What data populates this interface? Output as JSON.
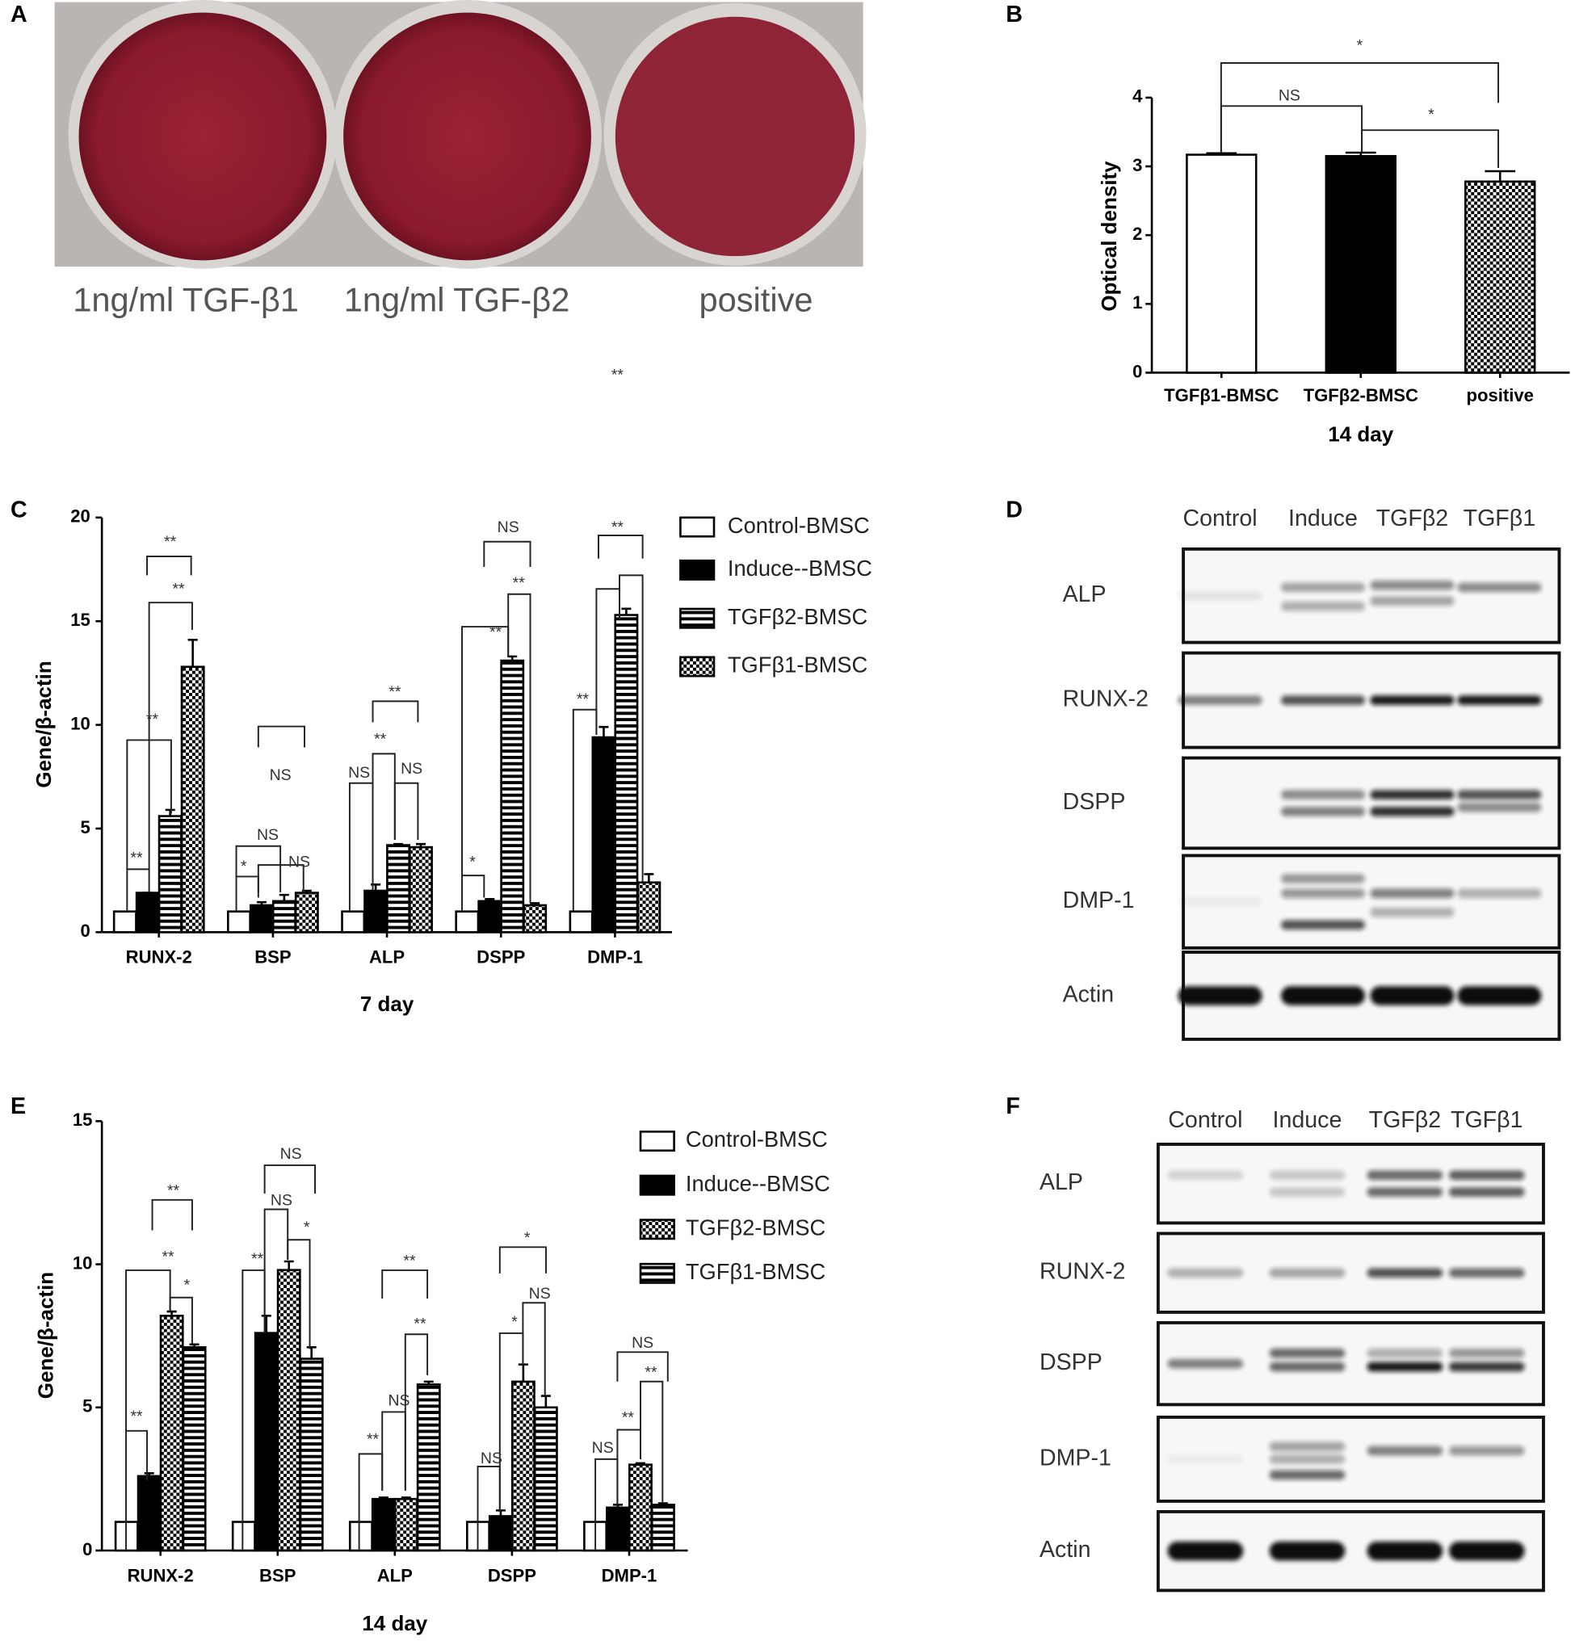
{
  "panel_a": {
    "panel_label": "A",
    "wells": [
      "1ng/ml TGF-β1",
      "1ng/ml TGF-β2",
      "positive"
    ],
    "annotation": "**"
  },
  "chart_data": [
    {
      "panel_label": "B",
      "type": "bar",
      "categories": [
        "TGFβ1-BMSC",
        "TGFβ2-BMSC",
        "positive"
      ],
      "values": [
        3.17,
        3.15,
        2.78
      ],
      "errors": [
        0.02,
        0.05,
        0.15
      ],
      "colors": [
        "#ffffff",
        "#000000",
        "#000000"
      ],
      "patterns": [
        "none",
        "none",
        "checker"
      ],
      "y_label": "Optical density",
      "x_label": "14 day",
      "ylim": [
        0,
        4
      ],
      "yticks": [
        0,
        1,
        2,
        3,
        4
      ],
      "annotations": [
        "*",
        "NS",
        "*"
      ]
    },
    {
      "panel_label": "C",
      "type": "bar",
      "categories": [
        "RUNX-2",
        "BSP",
        "ALP",
        "DSPP",
        "DMP-1"
      ],
      "series": [
        {
          "name": "Control-BMSC",
          "color": "#ffffff",
          "pattern": "none",
          "values": [
            1,
            1,
            1,
            1,
            1
          ]
        },
        {
          "name": "Induce--BMSC",
          "color": "#000000",
          "pattern": "none",
          "values": [
            1.9,
            1.3,
            2.0,
            1.5,
            9.4
          ],
          "errors": [
            0,
            0.15,
            0.3,
            0.1,
            0.5
          ]
        },
        {
          "name": "TGFβ2-BMSC",
          "color": "#000000",
          "pattern": "hstripe",
          "values": [
            5.6,
            1.5,
            4.2,
            13.1,
            15.3
          ],
          "errors": [
            0.3,
            0.3,
            0.05,
            0.2,
            0.3
          ]
        },
        {
          "name": "TGFβ1-BMSC",
          "color": "#000000",
          "pattern": "checker",
          "values": [
            12.8,
            1.9,
            4.1,
            1.3,
            2.4
          ],
          "errors": [
            1.3,
            0.1,
            0.15,
            0.1,
            0.4
          ]
        }
      ],
      "legend": "right",
      "y_label": "Gene/β-actin",
      "x_label": "7 day",
      "ylim": [
        0,
        20
      ],
      "yticks": [
        0,
        5,
        10,
        15,
        20
      ],
      "annotations": [
        "**",
        "**",
        "**",
        "**",
        "*",
        "NS",
        "NS",
        "NS",
        "NS",
        "**",
        "NS",
        "**",
        "*",
        "**",
        "NS",
        "**",
        "**",
        "**"
      ]
    },
    {
      "panel_label": "E",
      "type": "bar",
      "categories": [
        "RUNX-2",
        "BSP",
        "ALP",
        "DSPP",
        "DMP-1"
      ],
      "series": [
        {
          "name": "Control-BMSC",
          "color": "#ffffff",
          "pattern": "none",
          "values": [
            1,
            1,
            1,
            1,
            1
          ]
        },
        {
          "name": "Induce--BMSC",
          "color": "#000000",
          "pattern": "none",
          "values": [
            2.6,
            7.6,
            1.8,
            1.2,
            1.5
          ],
          "errors": [
            0.1,
            0.6,
            0.05,
            0.2,
            0.1
          ]
        },
        {
          "name": "TGFβ2-BMSC",
          "color": "#000000",
          "pattern": "checker",
          "values": [
            8.2,
            9.8,
            1.8,
            5.9,
            3.0
          ],
          "errors": [
            0.15,
            0.3,
            0.05,
            0.6,
            0.05
          ]
        },
        {
          "name": "TGFβ1-BMSC",
          "color": "#000000",
          "pattern": "hstripe",
          "values": [
            7.1,
            6.7,
            5.8,
            5.0,
            1.6
          ],
          "errors": [
            0.1,
            0.4,
            0.1,
            0.4,
            0.05
          ]
        }
      ],
      "legend": "right",
      "y_label": "Gene/β-actin",
      "x_label": "14 day",
      "ylim": [
        0,
        15
      ],
      "yticks": [
        0,
        5,
        10,
        15
      ],
      "annotations": [
        "**",
        "**",
        "*",
        "**",
        "**",
        "NS",
        "*",
        "NS",
        "**",
        "NS",
        "**",
        "**",
        "NS",
        "*",
        "NS",
        "*",
        "NS",
        "**",
        "**",
        "NS"
      ]
    }
  ],
  "panel_d": {
    "panel_label": "D",
    "lanes": [
      "Control",
      "Induce",
      "TGFβ2",
      "TGFβ1"
    ],
    "rows": [
      "ALP",
      "RUNX-2",
      "DSPP",
      "DMP-1",
      "Actin"
    ]
  },
  "panel_f": {
    "panel_label": "F",
    "lanes": [
      "Control",
      "Induce",
      "TGFβ2",
      "TGFβ1"
    ],
    "rows": [
      "ALP",
      "RUNX-2",
      "DSPP",
      "DMP-1",
      "Actin"
    ]
  }
}
